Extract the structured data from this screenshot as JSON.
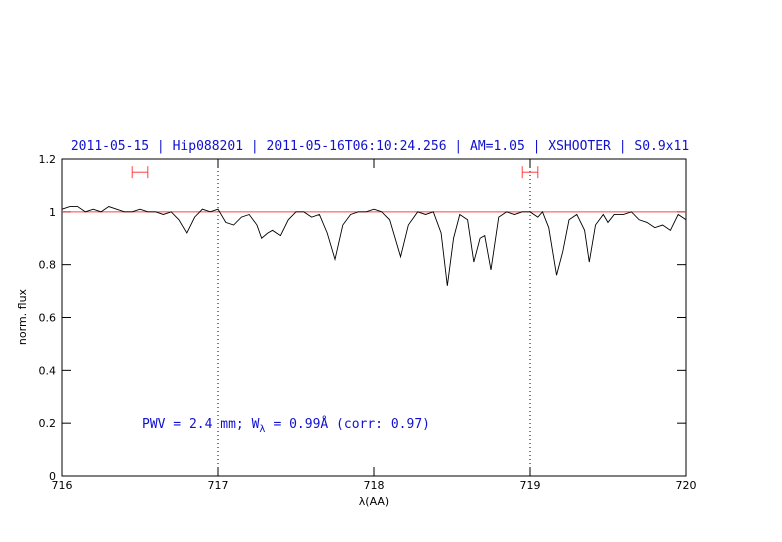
{
  "chart_data": {
    "type": "line",
    "title": "2011-05-15 | Hip088201 | 2011-05-16T06:10:24.256 | AM=1.05 | XSHOOTER | S0.9x11",
    "xlabel": "λ(AA)",
    "ylabel": "norm. flux",
    "annotation": {
      "text": "PWV = 2.4 mm; W",
      "subscript": "λ",
      "rest": "= 0.99Å (corr: 0.97)"
    },
    "xlim": [
      716,
      720
    ],
    "ylim": [
      0,
      1.2
    ],
    "xticks": [
      716,
      717,
      718,
      719,
      720
    ],
    "yticks": [
      0,
      0.2,
      0.4,
      0.6,
      0.8,
      1,
      1.2
    ],
    "continuum": 1,
    "continuum_color": "#ff4040",
    "vlines": [
      717,
      719
    ],
    "markers": [
      {
        "x": [
          716.45,
          716.55
        ],
        "y": 1.15
      },
      {
        "x": [
          718.95,
          719.05
        ],
        "y": 1.15
      }
    ],
    "marker_color": "#ff4040",
    "series": [
      {
        "color": "#000000",
        "x": [
          716.0,
          716.05,
          716.1,
          716.15,
          716.2,
          716.25,
          716.3,
          716.35,
          716.4,
          716.45,
          716.5,
          716.55,
          716.6,
          716.65,
          716.7,
          716.75,
          716.8,
          716.85,
          716.9,
          716.95,
          717.0,
          717.05,
          717.1,
          717.15,
          717.2,
          717.25,
          717.28,
          717.32,
          717.35,
          717.4,
          717.45,
          717.5,
          717.55,
          717.6,
          717.65,
          717.7,
          717.75,
          717.8,
          717.85,
          717.9,
          717.95,
          718.0,
          718.05,
          718.1,
          718.17,
          718.22,
          718.28,
          718.33,
          718.38,
          718.43,
          718.47,
          718.51,
          718.55,
          718.6,
          718.64,
          718.68,
          718.71,
          718.75,
          718.8,
          718.85,
          718.9,
          718.95,
          719.0,
          719.05,
          719.08,
          719.12,
          719.17,
          719.21,
          719.25,
          719.3,
          719.35,
          719.38,
          719.42,
          719.47,
          719.5,
          719.54,
          719.6,
          719.65,
          719.7,
          719.75,
          719.8,
          719.85,
          719.9,
          719.95,
          720.0
        ],
        "values": [
          1.01,
          1.02,
          1.02,
          1.0,
          1.01,
          1.0,
          1.02,
          1.01,
          1.0,
          1.0,
          1.01,
          1.0,
          1.0,
          0.99,
          1.0,
          0.97,
          0.92,
          0.98,
          1.01,
          1.0,
          1.01,
          0.96,
          0.95,
          0.98,
          0.99,
          0.95,
          0.9,
          0.92,
          0.93,
          0.91,
          0.97,
          1.0,
          1.0,
          0.98,
          0.99,
          0.92,
          0.82,
          0.95,
          0.99,
          1.0,
          1.0,
          1.01,
          1.0,
          0.97,
          0.83,
          0.95,
          1.0,
          0.99,
          1.0,
          0.92,
          0.72,
          0.9,
          0.99,
          0.97,
          0.81,
          0.9,
          0.91,
          0.78,
          0.98,
          1.0,
          0.99,
          1.0,
          1.0,
          0.98,
          1.0,
          0.94,
          0.76,
          0.85,
          0.97,
          0.99,
          0.93,
          0.81,
          0.95,
          0.99,
          0.96,
          0.99,
          0.99,
          1.0,
          0.97,
          0.96,
          0.94,
          0.95,
          0.93,
          0.99,
          0.97
        ]
      }
    ]
  }
}
